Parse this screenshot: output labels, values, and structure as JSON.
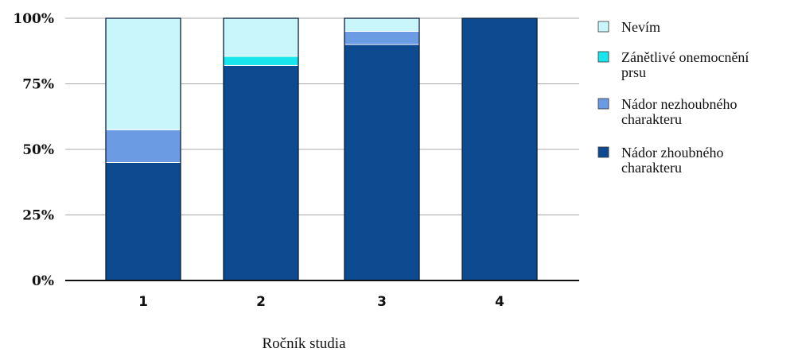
{
  "chart_data": {
    "type": "bar",
    "stacked": true,
    "normalized": true,
    "categories": [
      "1",
      "2",
      "3",
      "4"
    ],
    "xlabel": "Ročník studia",
    "ylabel": "",
    "ylim": [
      0,
      100
    ],
    "yticks": [
      "0%",
      "25%",
      "50%",
      "75%",
      "100%"
    ],
    "grid": true,
    "legend_position": "right",
    "series": [
      {
        "name": "Nádor zhoubného charakteru",
        "legend_lines": [
          "Nádor zhoubného",
          "charakteru"
        ],
        "color": "#0d4a8f",
        "values": [
          45,
          82,
          90,
          100
        ]
      },
      {
        "name": "Nádor nezhoubného charakteru",
        "legend_lines": [
          "Nádor nezhoubného",
          "charakteru"
        ],
        "color": "#6a9be3",
        "values": [
          12.5,
          0,
          5,
          0
        ]
      },
      {
        "name": "Zánětlivé onemocnění prsu",
        "legend_lines": [
          "Zánětlivé onemocnění",
          "prsu"
        ],
        "color": "#18e6ec",
        "values": [
          0,
          3.5,
          0,
          0
        ]
      },
      {
        "name": "Nevím",
        "legend_lines": [
          "Nevím"
        ],
        "color": "#c9f6fb",
        "values": [
          42.5,
          14.5,
          5,
          0
        ]
      }
    ]
  }
}
